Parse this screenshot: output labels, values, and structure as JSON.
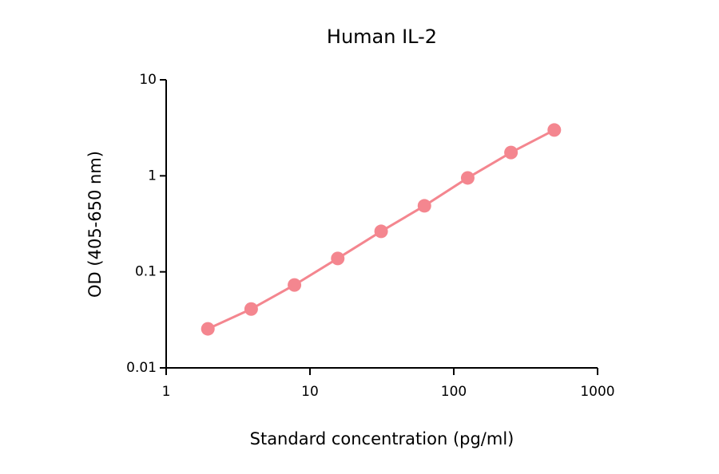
{
  "chart_data": {
    "type": "line",
    "title": "Human IL-2",
    "x_label": "Standard concentration (pg/ml)",
    "y_label": "OD (405-650 nm)",
    "x": [
      1.95,
      3.9,
      7.8,
      15.6,
      31.25,
      62.5,
      125,
      250,
      500
    ],
    "series": [
      {
        "name": "Human IL-2",
        "color": "#f4868f",
        "values": [
          0.0255,
          0.041,
          0.073,
          0.138,
          0.264,
          0.487,
          0.951,
          1.75,
          3.0
        ]
      }
    ],
    "x_log": true,
    "y_log": true,
    "xlim": [
      1,
      1000
    ],
    "xticks": [
      1,
      10,
      100,
      1000
    ],
    "ylim": [
      0.01,
      10
    ],
    "yticks": [
      0.01,
      0.1,
      1,
      10
    ],
    "grid": false,
    "legend": false
  }
}
